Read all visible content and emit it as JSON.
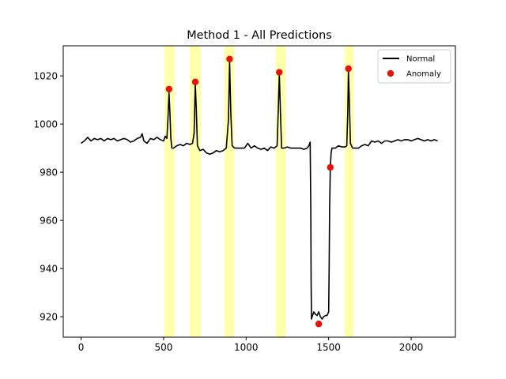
{
  "chart_data": {
    "type": "line",
    "title": "Method 1 - All Predictions",
    "xlabel": "",
    "ylabel": "",
    "xlim": [
      -108,
      2268
    ],
    "ylim": [
      911.5,
      1032.5
    ],
    "xticks": [
      0,
      500,
      1000,
      1500,
      2000
    ],
    "yticks": [
      920,
      940,
      960,
      980,
      1000,
      1020
    ],
    "grid": false,
    "legend_position": "top-right",
    "colors": {
      "normal": "#000000",
      "anomaly": "#e8120c",
      "highlight": "#ffff9e"
    },
    "highlight_spans": [
      [
        506,
        566
      ],
      [
        659,
        726
      ],
      [
        868,
        929
      ],
      [
        1180,
        1240
      ],
      [
        1596,
        1652
      ]
    ],
    "series": [
      {
        "name": "Normal",
        "kind": "line",
        "points": [
          [
            0,
            992
          ],
          [
            20,
            993
          ],
          [
            40,
            994.5
          ],
          [
            60,
            993
          ],
          [
            80,
            994
          ],
          [
            100,
            993.5
          ],
          [
            120,
            994
          ],
          [
            140,
            993
          ],
          [
            160,
            994
          ],
          [
            180,
            993.5
          ],
          [
            200,
            994
          ],
          [
            220,
            993
          ],
          [
            240,
            993.5
          ],
          [
            260,
            994
          ],
          [
            280,
            993.5
          ],
          [
            300,
            992.5
          ],
          [
            320,
            993
          ],
          [
            340,
            994
          ],
          [
            360,
            994.5
          ],
          [
            370,
            996
          ],
          [
            380,
            993
          ],
          [
            400,
            992
          ],
          [
            420,
            994
          ],
          [
            440,
            993.5
          ],
          [
            460,
            994.5
          ],
          [
            480,
            993.5
          ],
          [
            500,
            993
          ],
          [
            510,
            995
          ],
          [
            520,
            994
          ],
          [
            526,
            1002
          ],
          [
            533,
            1013
          ],
          [
            538,
            1005
          ],
          [
            544,
            994
          ],
          [
            550,
            990
          ],
          [
            560,
            990
          ],
          [
            580,
            991
          ],
          [
            600,
            991.5
          ],
          [
            620,
            991
          ],
          [
            640,
            992
          ],
          [
            660,
            991.5
          ],
          [
            675,
            992
          ],
          [
            685,
            996
          ],
          [
            692,
            1017
          ],
          [
            698,
            1006
          ],
          [
            705,
            991
          ],
          [
            720,
            989
          ],
          [
            740,
            989.5
          ],
          [
            760,
            988
          ],
          [
            780,
            987.5
          ],
          [
            800,
            988
          ],
          [
            820,
            989
          ],
          [
            840,
            988.5
          ],
          [
            860,
            989
          ],
          [
            880,
            990
          ],
          [
            893,
            1002
          ],
          [
            900,
            1026
          ],
          [
            907,
            1005
          ],
          [
            915,
            991
          ],
          [
            930,
            990
          ],
          [
            950,
            990
          ],
          [
            970,
            990
          ],
          [
            990,
            990
          ],
          [
            1010,
            992
          ],
          [
            1030,
            990
          ],
          [
            1050,
            991
          ],
          [
            1070,
            990
          ],
          [
            1090,
            989.5
          ],
          [
            1110,
            990
          ],
          [
            1130,
            989
          ],
          [
            1150,
            990.5
          ],
          [
            1170,
            990
          ],
          [
            1188,
            991
          ],
          [
            1195,
            1006
          ],
          [
            1201,
            1021
          ],
          [
            1208,
            1005
          ],
          [
            1215,
            990
          ],
          [
            1230,
            990
          ],
          [
            1250,
            990.5
          ],
          [
            1270,
            990
          ],
          [
            1290,
            990
          ],
          [
            1310,
            990
          ],
          [
            1330,
            990
          ],
          [
            1350,
            989.5
          ],
          [
            1370,
            990
          ],
          [
            1380,
            991
          ],
          [
            1388,
            992.5
          ],
          [
            1392,
            965
          ],
          [
            1394,
            935
          ],
          [
            1396,
            919
          ],
          [
            1400,
            920
          ],
          [
            1410,
            922
          ],
          [
            1420,
            921
          ],
          [
            1430,
            920.5
          ],
          [
            1440,
            922
          ],
          [
            1450,
            920
          ],
          [
            1460,
            919
          ],
          [
            1470,
            920
          ],
          [
            1480,
            920.5
          ],
          [
            1490,
            920.5
          ],
          [
            1500,
            922
          ],
          [
            1503,
            940
          ],
          [
            1506,
            965
          ],
          [
            1510,
            982
          ],
          [
            1515,
            988
          ],
          [
            1520,
            990
          ],
          [
            1540,
            990
          ],
          [
            1560,
            991
          ],
          [
            1580,
            990.5
          ],
          [
            1600,
            990.5
          ],
          [
            1610,
            991
          ],
          [
            1616,
            1005
          ],
          [
            1620,
            1022
          ],
          [
            1626,
            1008
          ],
          [
            1632,
            992
          ],
          [
            1645,
            990
          ],
          [
            1660,
            990
          ],
          [
            1680,
            990
          ],
          [
            1700,
            991
          ],
          [
            1720,
            991.5
          ],
          [
            1740,
            991
          ],
          [
            1760,
            993
          ],
          [
            1780,
            992.5
          ],
          [
            1800,
            993
          ],
          [
            1820,
            992
          ],
          [
            1840,
            993
          ],
          [
            1860,
            993
          ],
          [
            1880,
            992.5
          ],
          [
            1900,
            993
          ],
          [
            1920,
            993.5
          ],
          [
            1940,
            993
          ],
          [
            1960,
            993.5
          ],
          [
            1980,
            993.5
          ],
          [
            2000,
            993
          ],
          [
            2020,
            993.5
          ],
          [
            2040,
            994
          ],
          [
            2060,
            993.5
          ],
          [
            2080,
            993
          ],
          [
            2100,
            993.5
          ],
          [
            2120,
            993
          ],
          [
            2140,
            993.5
          ],
          [
            2160,
            993
          ]
        ]
      },
      {
        "name": "Anomaly",
        "kind": "scatter",
        "points": [
          [
            533,
            1014.5
          ],
          [
            692,
            1017.5
          ],
          [
            900,
            1027
          ],
          [
            1201,
            1021.5
          ],
          [
            1440,
            917
          ],
          [
            1510,
            982
          ],
          [
            1620,
            1023
          ]
        ]
      }
    ]
  }
}
